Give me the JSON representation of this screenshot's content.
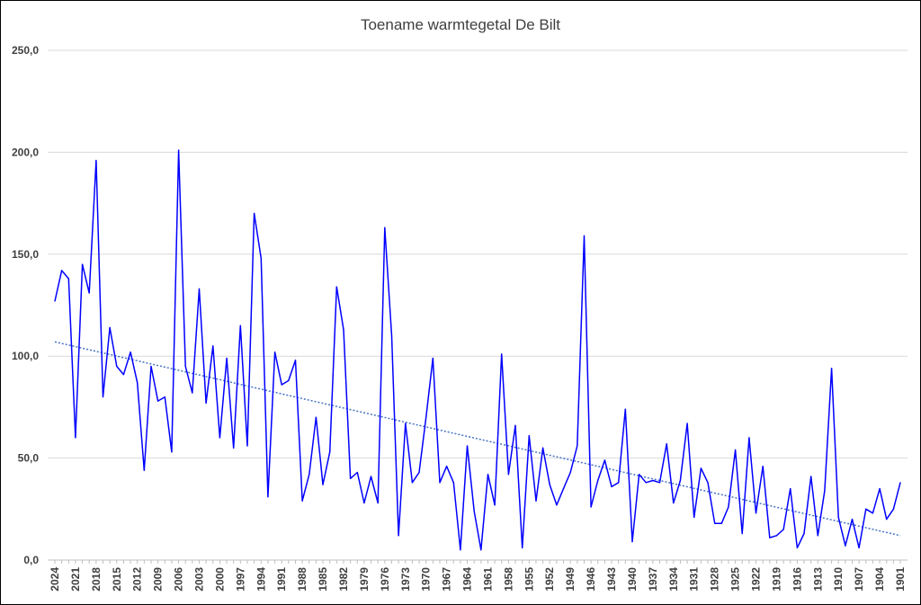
{
  "chart_data": {
    "type": "line",
    "title": "Toename warmtegetal De Bilt",
    "xlabel": "",
    "ylabel": "",
    "ylim": [
      0,
      250
    ],
    "y_ticks": [
      "0,0",
      "50,0",
      "100,0",
      "150,0",
      "200,0",
      "250,0"
    ],
    "x_tick_labels": [
      "2024",
      "2021",
      "2018",
      "2015",
      "2012",
      "2009",
      "2006",
      "2003",
      "2000",
      "1997",
      "1994",
      "1991",
      "1988",
      "1985",
      "1982",
      "1979",
      "1976",
      "1973",
      "1970",
      "1967",
      "1964",
      "1961",
      "1958",
      "1955",
      "1952",
      "1949",
      "1946",
      "1943",
      "1940",
      "1937",
      "1934",
      "1931",
      "1928",
      "1925",
      "1922",
      "1919",
      "1916",
      "1913",
      "1910",
      "1907",
      "1904",
      "1901"
    ],
    "grid": "horizontal",
    "legend": "none",
    "series_color": "#0000ff",
    "trendline_color": "#4472c4",
    "trendline": [
      107,
      12
    ],
    "x": [
      2024,
      2023,
      2022,
      2021,
      2020,
      2019,
      2018,
      2017,
      2016,
      2015,
      2014,
      2013,
      2012,
      2011,
      2010,
      2009,
      2008,
      2007,
      2006,
      2005,
      2004,
      2003,
      2002,
      2001,
      2000,
      1999,
      1998,
      1997,
      1996,
      1995,
      1994,
      1993,
      1992,
      1991,
      1990,
      1989,
      1988,
      1987,
      1986,
      1985,
      1984,
      1983,
      1982,
      1981,
      1980,
      1979,
      1978,
      1977,
      1976,
      1975,
      1974,
      1973,
      1972,
      1971,
      1970,
      1969,
      1968,
      1967,
      1966,
      1965,
      1964,
      1963,
      1962,
      1961,
      1960,
      1959,
      1958,
      1957,
      1956,
      1955,
      1954,
      1953,
      1952,
      1951,
      1950,
      1949,
      1948,
      1947,
      1946,
      1945,
      1944,
      1943,
      1942,
      1941,
      1940,
      1939,
      1938,
      1937,
      1936,
      1935,
      1934,
      1933,
      1932,
      1931,
      1930,
      1929,
      1928,
      1927,
      1926,
      1925,
      1924,
      1923,
      1922,
      1921,
      1920,
      1919,
      1918,
      1917,
      1916,
      1915,
      1914,
      1913,
      1912,
      1911,
      1910,
      1909,
      1908,
      1907,
      1906,
      1905,
      1904,
      1903,
      1902,
      1901
    ],
    "values": [
      127,
      142,
      138,
      60,
      145,
      131,
      196,
      80,
      114,
      95,
      91,
      102,
      87,
      44,
      95,
      78,
      80,
      53,
      201,
      95,
      82,
      133,
      77,
      105,
      60,
      99,
      55,
      115,
      56,
      170,
      148,
      31,
      102,
      86,
      88,
      98,
      29,
      42,
      70,
      37,
      53,
      134,
      113,
      40,
      43,
      28,
      41,
      28,
      163,
      110,
      12,
      67,
      38,
      43,
      70,
      99,
      38,
      46,
      38,
      5,
      56,
      24,
      5,
      42,
      27,
      101,
      42,
      66,
      6,
      61,
      29,
      55,
      37,
      27,
      35,
      43,
      56,
      159,
      26,
      39,
      49,
      36,
      38,
      74,
      9,
      42,
      38,
      39,
      38,
      57,
      28,
      39,
      67,
      21,
      45,
      38,
      18,
      18,
      26,
      54,
      13,
      60,
      23,
      46,
      11,
      12,
      15,
      35,
      6,
      13,
      41,
      12,
      34,
      94,
      21,
      7,
      20,
      6,
      25,
      23,
      35,
      20,
      25,
      38
    ]
  }
}
